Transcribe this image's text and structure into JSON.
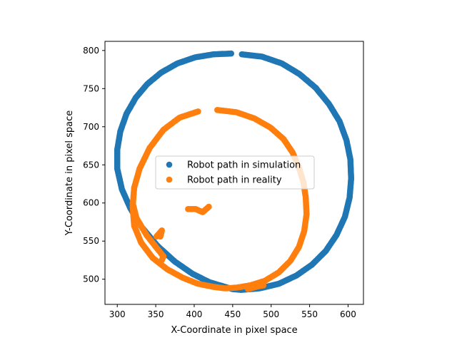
{
  "chart_data": {
    "type": "scatter",
    "title": "",
    "xlabel": "X-Coordinate in pixel space",
    "ylabel": "Y-Coordinate in pixel space",
    "xlim": [
      284,
      620
    ],
    "ylim": [
      467,
      812
    ],
    "xticks": [
      300,
      350,
      400,
      450,
      500,
      550,
      600
    ],
    "yticks": [
      500,
      550,
      600,
      650,
      700,
      750,
      800
    ],
    "grid": false,
    "legend_position": "center",
    "series": [
      {
        "name": "Robot path in simulation",
        "color": "#1f77b4",
        "marker": "circle",
        "x": [
          462,
          488,
          514,
          537,
          558,
          575,
          589,
          598,
          603,
          604,
          602,
          596,
          585,
          571,
          553,
          533,
          510,
          485,
          461,
          450,
          440,
          420,
          398,
          375,
          352,
          332,
          317,
          306,
          300,
          300,
          304,
          312,
          324,
          339,
          357,
          378,
          401,
          425,
          448
        ],
        "y": [
          795,
          792,
          783,
          769,
          751,
          730,
          707,
          682,
          657,
          632,
          607,
          582,
          558,
          537,
          519,
          505,
          494,
          488,
          486,
          487,
          490,
          496,
          507,
          523,
          544,
          568,
          593,
          618,
          645,
          670,
          694,
          717,
          738,
          756,
          771,
          783,
          791,
          795,
          796
        ]
      },
      {
        "name": "Robot path in reality",
        "color": "#ff7f0e",
        "marker": "circle",
        "x": [
          430,
          455,
          478,
          499,
          516,
          528,
          536,
          542,
          545,
          546,
          543,
          536,
          525,
          510,
          492,
          473,
          455,
          440,
          425,
          405,
          385,
          365,
          346,
          331,
          322,
          320,
          322,
          329,
          342,
          360,
          381,
          405,
          320,
          325,
          338,
          352,
          360,
          358,
          392,
          402,
          411,
          419,
          351,
          358,
          356,
          470,
          480,
          490
        ],
        "y": [
          722,
          719,
          711,
          699,
          684,
          666,
          647,
          627,
          607,
          585,
          563,
          542,
          524,
          509,
          498,
          492,
          489,
          488,
          490,
          494,
          502,
          513,
          528,
          548,
          570,
          595,
          620,
          645,
          672,
          696,
          712,
          720,
          600,
          580,
          558,
          540,
          530,
          525,
          592,
          592,
          588,
          595,
          556,
          564,
          556,
          487,
          490,
          492
        ]
      }
    ]
  }
}
